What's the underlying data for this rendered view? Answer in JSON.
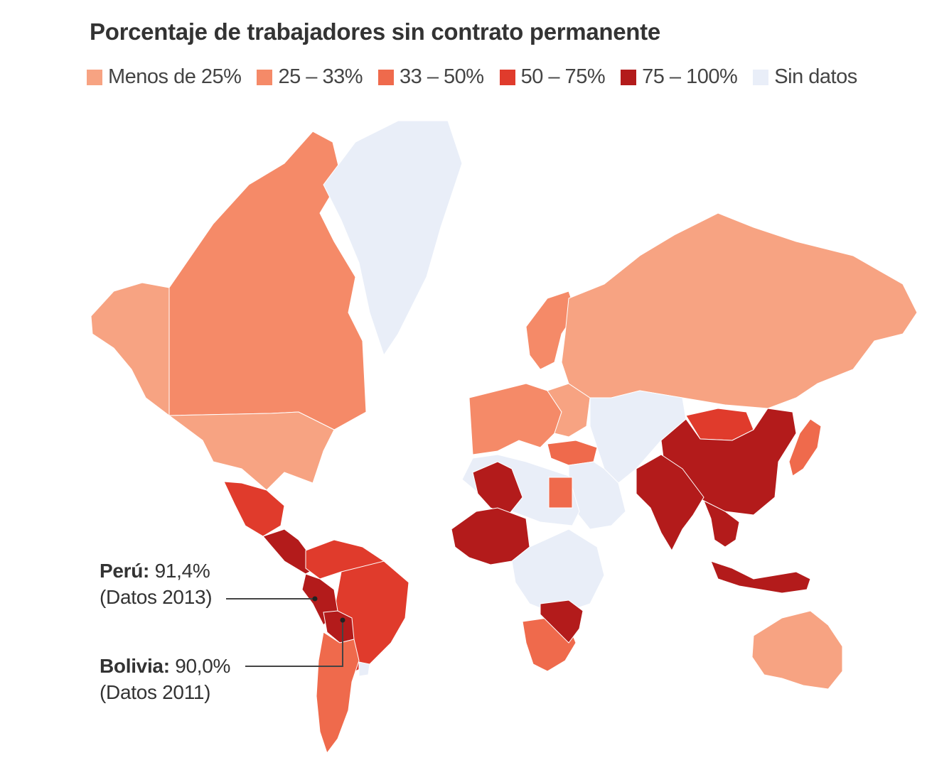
{
  "title": "Porcentaje de trabajadores sin contrato permanente",
  "legend": [
    {
      "label": "Menos de 25%",
      "color": "#f7a382"
    },
    {
      "label": "25 – 33%",
      "color": "#f58a68"
    },
    {
      "label": "33 – 50%",
      "color": "#ef6a4c"
    },
    {
      "label": "50 – 75%",
      "color": "#e03b2c"
    },
    {
      "label": "75 – 100%",
      "color": "#b31b1b"
    },
    {
      "label": "Sin datos",
      "color": "#e9eef8"
    }
  ],
  "callouts": {
    "peru": {
      "name": "Perú:",
      "value": "91,4%",
      "note": "(Datos 2013)"
    },
    "bolivia": {
      "name": "Bolivia:",
      "value": "90,0%",
      "note": "(Datos 2011)"
    }
  },
  "regions": [
    {
      "name": "canada",
      "category": "25 – 33%"
    },
    {
      "name": "alaska",
      "category": "Menos de 25%"
    },
    {
      "name": "united-states",
      "category": "Menos de 25%"
    },
    {
      "name": "greenland",
      "category": "Sin datos"
    },
    {
      "name": "mexico",
      "category": "50 – 75%"
    },
    {
      "name": "central-america",
      "category": "75 – 100%"
    },
    {
      "name": "colombia-venezuela",
      "category": "50 – 75%"
    },
    {
      "name": "brazil",
      "category": "50 – 75%"
    },
    {
      "name": "peru",
      "category": "75 – 100%"
    },
    {
      "name": "bolivia",
      "category": "75 – 100%"
    },
    {
      "name": "argentina-chile",
      "category": "33 – 50%"
    },
    {
      "name": "uruguay",
      "category": "Sin datos"
    },
    {
      "name": "scandinavia",
      "category": "25 – 33%"
    },
    {
      "name": "western-europe",
      "category": "25 – 33%"
    },
    {
      "name": "eastern-europe",
      "category": "Menos de 25%"
    },
    {
      "name": "russia",
      "category": "Menos de 25%"
    },
    {
      "name": "central-asia",
      "category": "Sin datos"
    },
    {
      "name": "middle-east",
      "category": "Sin datos"
    },
    {
      "name": "turkey",
      "category": "33 – 50%"
    },
    {
      "name": "china",
      "category": "75 – 100%"
    },
    {
      "name": "mongolia",
      "category": "50 – 75%"
    },
    {
      "name": "india",
      "category": "75 – 100%"
    },
    {
      "name": "southeast-asia",
      "category": "75 – 100%"
    },
    {
      "name": "indonesia",
      "category": "75 – 100%"
    },
    {
      "name": "japan",
      "category": "33 – 50%"
    },
    {
      "name": "australia",
      "category": "Menos de 25%"
    },
    {
      "name": "north-africa",
      "category": "Sin datos"
    },
    {
      "name": "algeria",
      "category": "75 – 100%"
    },
    {
      "name": "west-africa-sahel",
      "category": "75 – 100%"
    },
    {
      "name": "egypt",
      "category": "33 – 50%"
    },
    {
      "name": "central-africa",
      "category": "Sin datos"
    },
    {
      "name": "southern-africa",
      "category": "33 – 50%"
    },
    {
      "name": "mozambique-zimbabwe",
      "category": "75 – 100%"
    }
  ]
}
